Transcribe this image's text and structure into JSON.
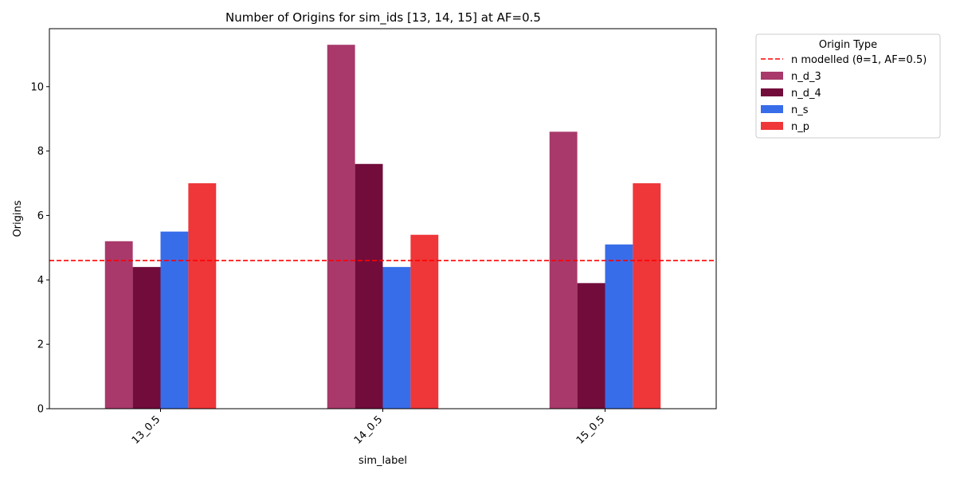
{
  "chart_data": {
    "type": "bar",
    "title": "Number of Origins for sim_ids [13, 14, 15] at AF=0.5",
    "xlabel": "sim_label",
    "ylabel": "Origins",
    "categories": [
      "13_0.5",
      "14_0.5",
      "15_0.5"
    ],
    "ylim": [
      0,
      11.8
    ],
    "yticks": [
      0,
      2,
      4,
      6,
      8,
      10
    ],
    "grid": false,
    "legend": {
      "title": "Origin Type",
      "placement": "outside-top-right"
    },
    "series": [
      {
        "name": "n_d_3",
        "color": "#a8396a",
        "values": [
          5.2,
          11.3,
          8.6
        ]
      },
      {
        "name": "n_d_4",
        "color": "#720c3b",
        "values": [
          4.4,
          7.6,
          3.9
        ]
      },
      {
        "name": "n_s",
        "color": "#386de9",
        "values": [
          5.5,
          4.4,
          5.1
        ]
      },
      {
        "name": "n_p",
        "color": "#ef3639",
        "values": [
          7.0,
          5.4,
          7.0
        ]
      }
    ],
    "reference_line": {
      "name": "n modelled (θ=1, AF=0.5)",
      "value": 4.6,
      "color": "#ff0000",
      "style": "dashed"
    }
  }
}
